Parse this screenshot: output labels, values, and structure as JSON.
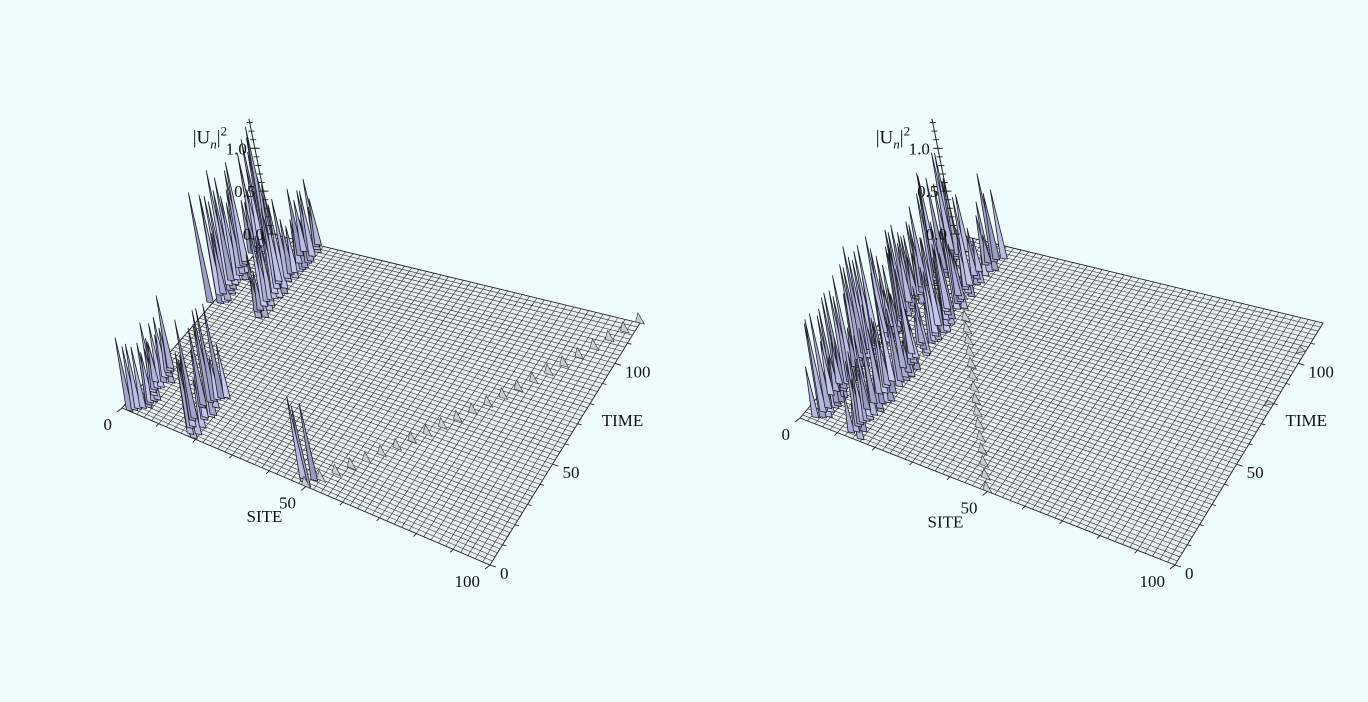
{
  "chart_data": [
    {
      "type": "surface",
      "panel": "left",
      "zlabel_main": "|U",
      "zlabel_sub": "n",
      "zlabel_sup": "2",
      "xlabel": "SITE",
      "ylabel": "TIME",
      "z_ticks": [
        "0.0",
        "0.5",
        "1.0"
      ],
      "x_ticks": [
        "0",
        "50",
        "100"
      ],
      "y_ticks": [
        "0",
        "50",
        "100"
      ],
      "xlim": [
        0,
        100
      ],
      "ylim": [
        0,
        120
      ],
      "zlim": [
        0,
        1.4
      ],
      "colors": {
        "surface": "#e9eef3",
        "peak": "#c9cde6",
        "spike_dark": "#3a3a4a"
      },
      "features": [
        {
          "kind": "spikes",
          "site": 4,
          "t_range": [
            0,
            30
          ],
          "amplitude_range": [
            0.3,
            0.9
          ]
        },
        {
          "kind": "spikes",
          "site": 18,
          "t_range": [
            0,
            26
          ],
          "amplitude_range": [
            0.5,
            1.15
          ]
        },
        {
          "kind": "spikes",
          "site": 50,
          "t_range": [
            0,
            4
          ],
          "amplitude_range": [
            0.8,
            1.0
          ]
        },
        {
          "kind": "moving_breather",
          "site_start": 50,
          "site_end": 100,
          "t_range": [
            0,
            120
          ],
          "amplitude": 0.12
        },
        {
          "kind": "spikes",
          "site": 1,
          "t_range": [
            72,
            120
          ],
          "amplitude_range": [
            0.5,
            1.35
          ]
        },
        {
          "kind": "spikes",
          "site": 12,
          "t_range": [
            72,
            120
          ],
          "amplitude_range": [
            0.4,
            1.0
          ]
        }
      ]
    },
    {
      "type": "surface",
      "panel": "right",
      "zlabel_main": "|U",
      "zlabel_sub": "n",
      "zlabel_sup": "2",
      "xlabel": "SITE",
      "ylabel": "TIME",
      "z_ticks": [
        "0.0",
        "0.5",
        "1.0"
      ],
      "x_ticks": [
        "0",
        "50",
        "100"
      ],
      "y_ticks": [
        "0",
        "50",
        "100"
      ],
      "xlim": [
        0,
        100
      ],
      "ylim": [
        0,
        120
      ],
      "zlim": [
        0,
        1.4
      ],
      "colors": {
        "surface": "#e9eef3",
        "peak": "#c9cde6",
        "spike_dark": "#3a3a4a"
      },
      "features": [
        {
          "kind": "moving_breather",
          "site_start": 50,
          "site_end": 0,
          "t_range": [
            0,
            120
          ],
          "amplitude": 0.12
        },
        {
          "kind": "spikes",
          "site": 4,
          "t_range": [
            3,
            112
          ],
          "amplitude_range": [
            0.4,
            1.25
          ]
        },
        {
          "kind": "spikes",
          "site": 14,
          "t_range": [
            1,
            113
          ],
          "amplitude_range": [
            0.3,
            1.05
          ]
        },
        {
          "kind": "bump",
          "site": 100,
          "t": 104,
          "amplitude": 0.1
        },
        {
          "kind": "bump",
          "site": 100,
          "t": 78,
          "amplitude": 0.08
        }
      ]
    }
  ]
}
